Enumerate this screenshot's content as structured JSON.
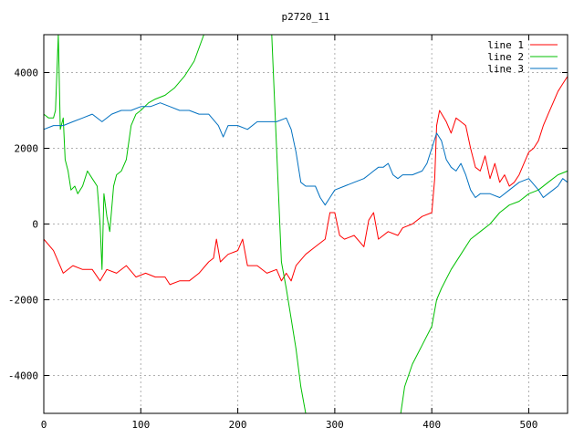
{
  "chart_data": {
    "type": "line",
    "title": "p2720_11",
    "xlabel": "",
    "ylabel": "",
    "xlim": [
      0,
      540
    ],
    "ylim": [
      -5000,
      5000
    ],
    "x_ticks": [
      0,
      100,
      200,
      300,
      400,
      500
    ],
    "y_ticks": [
      -4000,
      -2000,
      0,
      2000,
      4000
    ],
    "grid": true,
    "legend_position": "top-right",
    "series": [
      {
        "name": "line 1",
        "color": "#ff0000",
        "points": [
          [
            0,
            -400
          ],
          [
            10,
            -700
          ],
          [
            20,
            -1300
          ],
          [
            30,
            -1100
          ],
          [
            40,
            -1200
          ],
          [
            50,
            -1200
          ],
          [
            58,
            -1500
          ],
          [
            65,
            -1200
          ],
          [
            75,
            -1300
          ],
          [
            85,
            -1100
          ],
          [
            95,
            -1400
          ],
          [
            105,
            -1300
          ],
          [
            115,
            -1400
          ],
          [
            125,
            -1400
          ],
          [
            130,
            -1600
          ],
          [
            140,
            -1500
          ],
          [
            150,
            -1500
          ],
          [
            160,
            -1300
          ],
          [
            170,
            -1000
          ],
          [
            175,
            -900
          ],
          [
            178,
            -400
          ],
          [
            182,
            -1000
          ],
          [
            190,
            -800
          ],
          [
            200,
            -700
          ],
          [
            205,
            -400
          ],
          [
            210,
            -1100
          ],
          [
            220,
            -1100
          ],
          [
            230,
            -1300
          ],
          [
            240,
            -1200
          ],
          [
            245,
            -1500
          ],
          [
            250,
            -1300
          ],
          [
            255,
            -1500
          ],
          [
            260,
            -1100
          ],
          [
            270,
            -800
          ],
          [
            280,
            -600
          ],
          [
            290,
            -400
          ],
          [
            295,
            300
          ],
          [
            300,
            300
          ],
          [
            305,
            -300
          ],
          [
            310,
            -400
          ],
          [
            320,
            -300
          ],
          [
            330,
            -600
          ],
          [
            335,
            100
          ],
          [
            340,
            300
          ],
          [
            345,
            -400
          ],
          [
            355,
            -200
          ],
          [
            365,
            -300
          ],
          [
            370,
            -100
          ],
          [
            380,
            0
          ],
          [
            390,
            200
          ],
          [
            400,
            300
          ],
          [
            403,
            1200
          ],
          [
            405,
            2600
          ],
          [
            408,
            3000
          ],
          [
            415,
            2700
          ],
          [
            420,
            2400
          ],
          [
            425,
            2800
          ],
          [
            430,
            2700
          ],
          [
            435,
            2600
          ],
          [
            440,
            2000
          ],
          [
            445,
            1500
          ],
          [
            450,
            1400
          ],
          [
            455,
            1800
          ],
          [
            460,
            1200
          ],
          [
            465,
            1600
          ],
          [
            470,
            1100
          ],
          [
            475,
            1300
          ],
          [
            480,
            1000
          ],
          [
            485,
            1100
          ],
          [
            490,
            1300
          ],
          [
            495,
            1600
          ],
          [
            500,
            1900
          ],
          [
            505,
            2000
          ],
          [
            510,
            2200
          ],
          [
            515,
            2600
          ],
          [
            520,
            2900
          ],
          [
            525,
            3200
          ],
          [
            530,
            3500
          ],
          [
            535,
            3700
          ],
          [
            540,
            3900
          ]
        ]
      },
      {
        "name": "line 2",
        "color": "#00c000",
        "points": [
          [
            0,
            2900
          ],
          [
            5,
            2800
          ],
          [
            10,
            2800
          ],
          [
            12,
            3000
          ],
          [
            15,
            5000
          ],
          [
            17,
            2500
          ],
          [
            20,
            2800
          ],
          [
            22,
            1700
          ],
          [
            25,
            1400
          ],
          [
            28,
            900
          ],
          [
            32,
            1000
          ],
          [
            35,
            800
          ],
          [
            40,
            1000
          ],
          [
            45,
            1400
          ],
          [
            50,
            1200
          ],
          [
            55,
            1000
          ],
          [
            58,
            0
          ],
          [
            60,
            -1200
          ],
          [
            62,
            800
          ],
          [
            65,
            200
          ],
          [
            68,
            -200
          ],
          [
            72,
            1000
          ],
          [
            75,
            1300
          ],
          [
            80,
            1400
          ],
          [
            85,
            1700
          ],
          [
            90,
            2600
          ],
          [
            95,
            2900
          ],
          [
            100,
            3000
          ],
          [
            108,
            3200
          ],
          [
            115,
            3300
          ],
          [
            125,
            3400
          ],
          [
            135,
            3600
          ],
          [
            145,
            3900
          ],
          [
            155,
            4300
          ],
          [
            165,
            5000
          ],
          [
            235,
            5000
          ],
          [
            240,
            2000
          ],
          [
            245,
            -1000
          ],
          [
            250,
            -1700
          ],
          [
            255,
            -2500
          ],
          [
            260,
            -3300
          ],
          [
            265,
            -4300
          ],
          [
            270,
            -5000
          ],
          [
            368,
            -5000
          ],
          [
            372,
            -4300
          ],
          [
            380,
            -3700
          ],
          [
            390,
            -3200
          ],
          [
            400,
            -2700
          ],
          [
            405,
            -2000
          ],
          [
            410,
            -1700
          ],
          [
            420,
            -1200
          ],
          [
            430,
            -800
          ],
          [
            440,
            -400
          ],
          [
            450,
            -200
          ],
          [
            460,
            0
          ],
          [
            470,
            300
          ],
          [
            480,
            500
          ],
          [
            490,
            600
          ],
          [
            500,
            800
          ],
          [
            510,
            900
          ],
          [
            520,
            1100
          ],
          [
            530,
            1300
          ],
          [
            540,
            1400
          ]
        ]
      },
      {
        "name": "line 3",
        "color": "#0070c0",
        "points": [
          [
            0,
            2500
          ],
          [
            10,
            2600
          ],
          [
            20,
            2600
          ],
          [
            30,
            2700
          ],
          [
            40,
            2800
          ],
          [
            50,
            2900
          ],
          [
            60,
            2700
          ],
          [
            70,
            2900
          ],
          [
            80,
            3000
          ],
          [
            90,
            3000
          ],
          [
            100,
            3100
          ],
          [
            110,
            3100
          ],
          [
            120,
            3200
          ],
          [
            130,
            3100
          ],
          [
            140,
            3000
          ],
          [
            150,
            3000
          ],
          [
            160,
            2900
          ],
          [
            170,
            2900
          ],
          [
            180,
            2600
          ],
          [
            185,
            2300
          ],
          [
            190,
            2600
          ],
          [
            200,
            2600
          ],
          [
            210,
            2500
          ],
          [
            220,
            2700
          ],
          [
            230,
            2700
          ],
          [
            240,
            2700
          ],
          [
            250,
            2800
          ],
          [
            255,
            2500
          ],
          [
            260,
            1900
          ],
          [
            265,
            1100
          ],
          [
            270,
            1000
          ],
          [
            280,
            1000
          ],
          [
            285,
            700
          ],
          [
            290,
            500
          ],
          [
            295,
            700
          ],
          [
            300,
            900
          ],
          [
            310,
            1000
          ],
          [
            320,
            1100
          ],
          [
            330,
            1200
          ],
          [
            335,
            1300
          ],
          [
            340,
            1400
          ],
          [
            345,
            1500
          ],
          [
            350,
            1500
          ],
          [
            355,
            1600
          ],
          [
            360,
            1300
          ],
          [
            365,
            1200
          ],
          [
            370,
            1300
          ],
          [
            380,
            1300
          ],
          [
            390,
            1400
          ],
          [
            395,
            1600
          ],
          [
            400,
            2000
          ],
          [
            405,
            2400
          ],
          [
            410,
            2200
          ],
          [
            415,
            1700
          ],
          [
            420,
            1500
          ],
          [
            425,
            1400
          ],
          [
            430,
            1600
          ],
          [
            435,
            1300
          ],
          [
            440,
            900
          ],
          [
            445,
            700
          ],
          [
            450,
            800
          ],
          [
            460,
            800
          ],
          [
            470,
            700
          ],
          [
            480,
            900
          ],
          [
            490,
            1100
          ],
          [
            500,
            1200
          ],
          [
            510,
            900
          ],
          [
            515,
            700
          ],
          [
            520,
            800
          ],
          [
            525,
            900
          ],
          [
            530,
            1000
          ],
          [
            535,
            1200
          ],
          [
            540,
            1100
          ]
        ]
      }
    ]
  }
}
